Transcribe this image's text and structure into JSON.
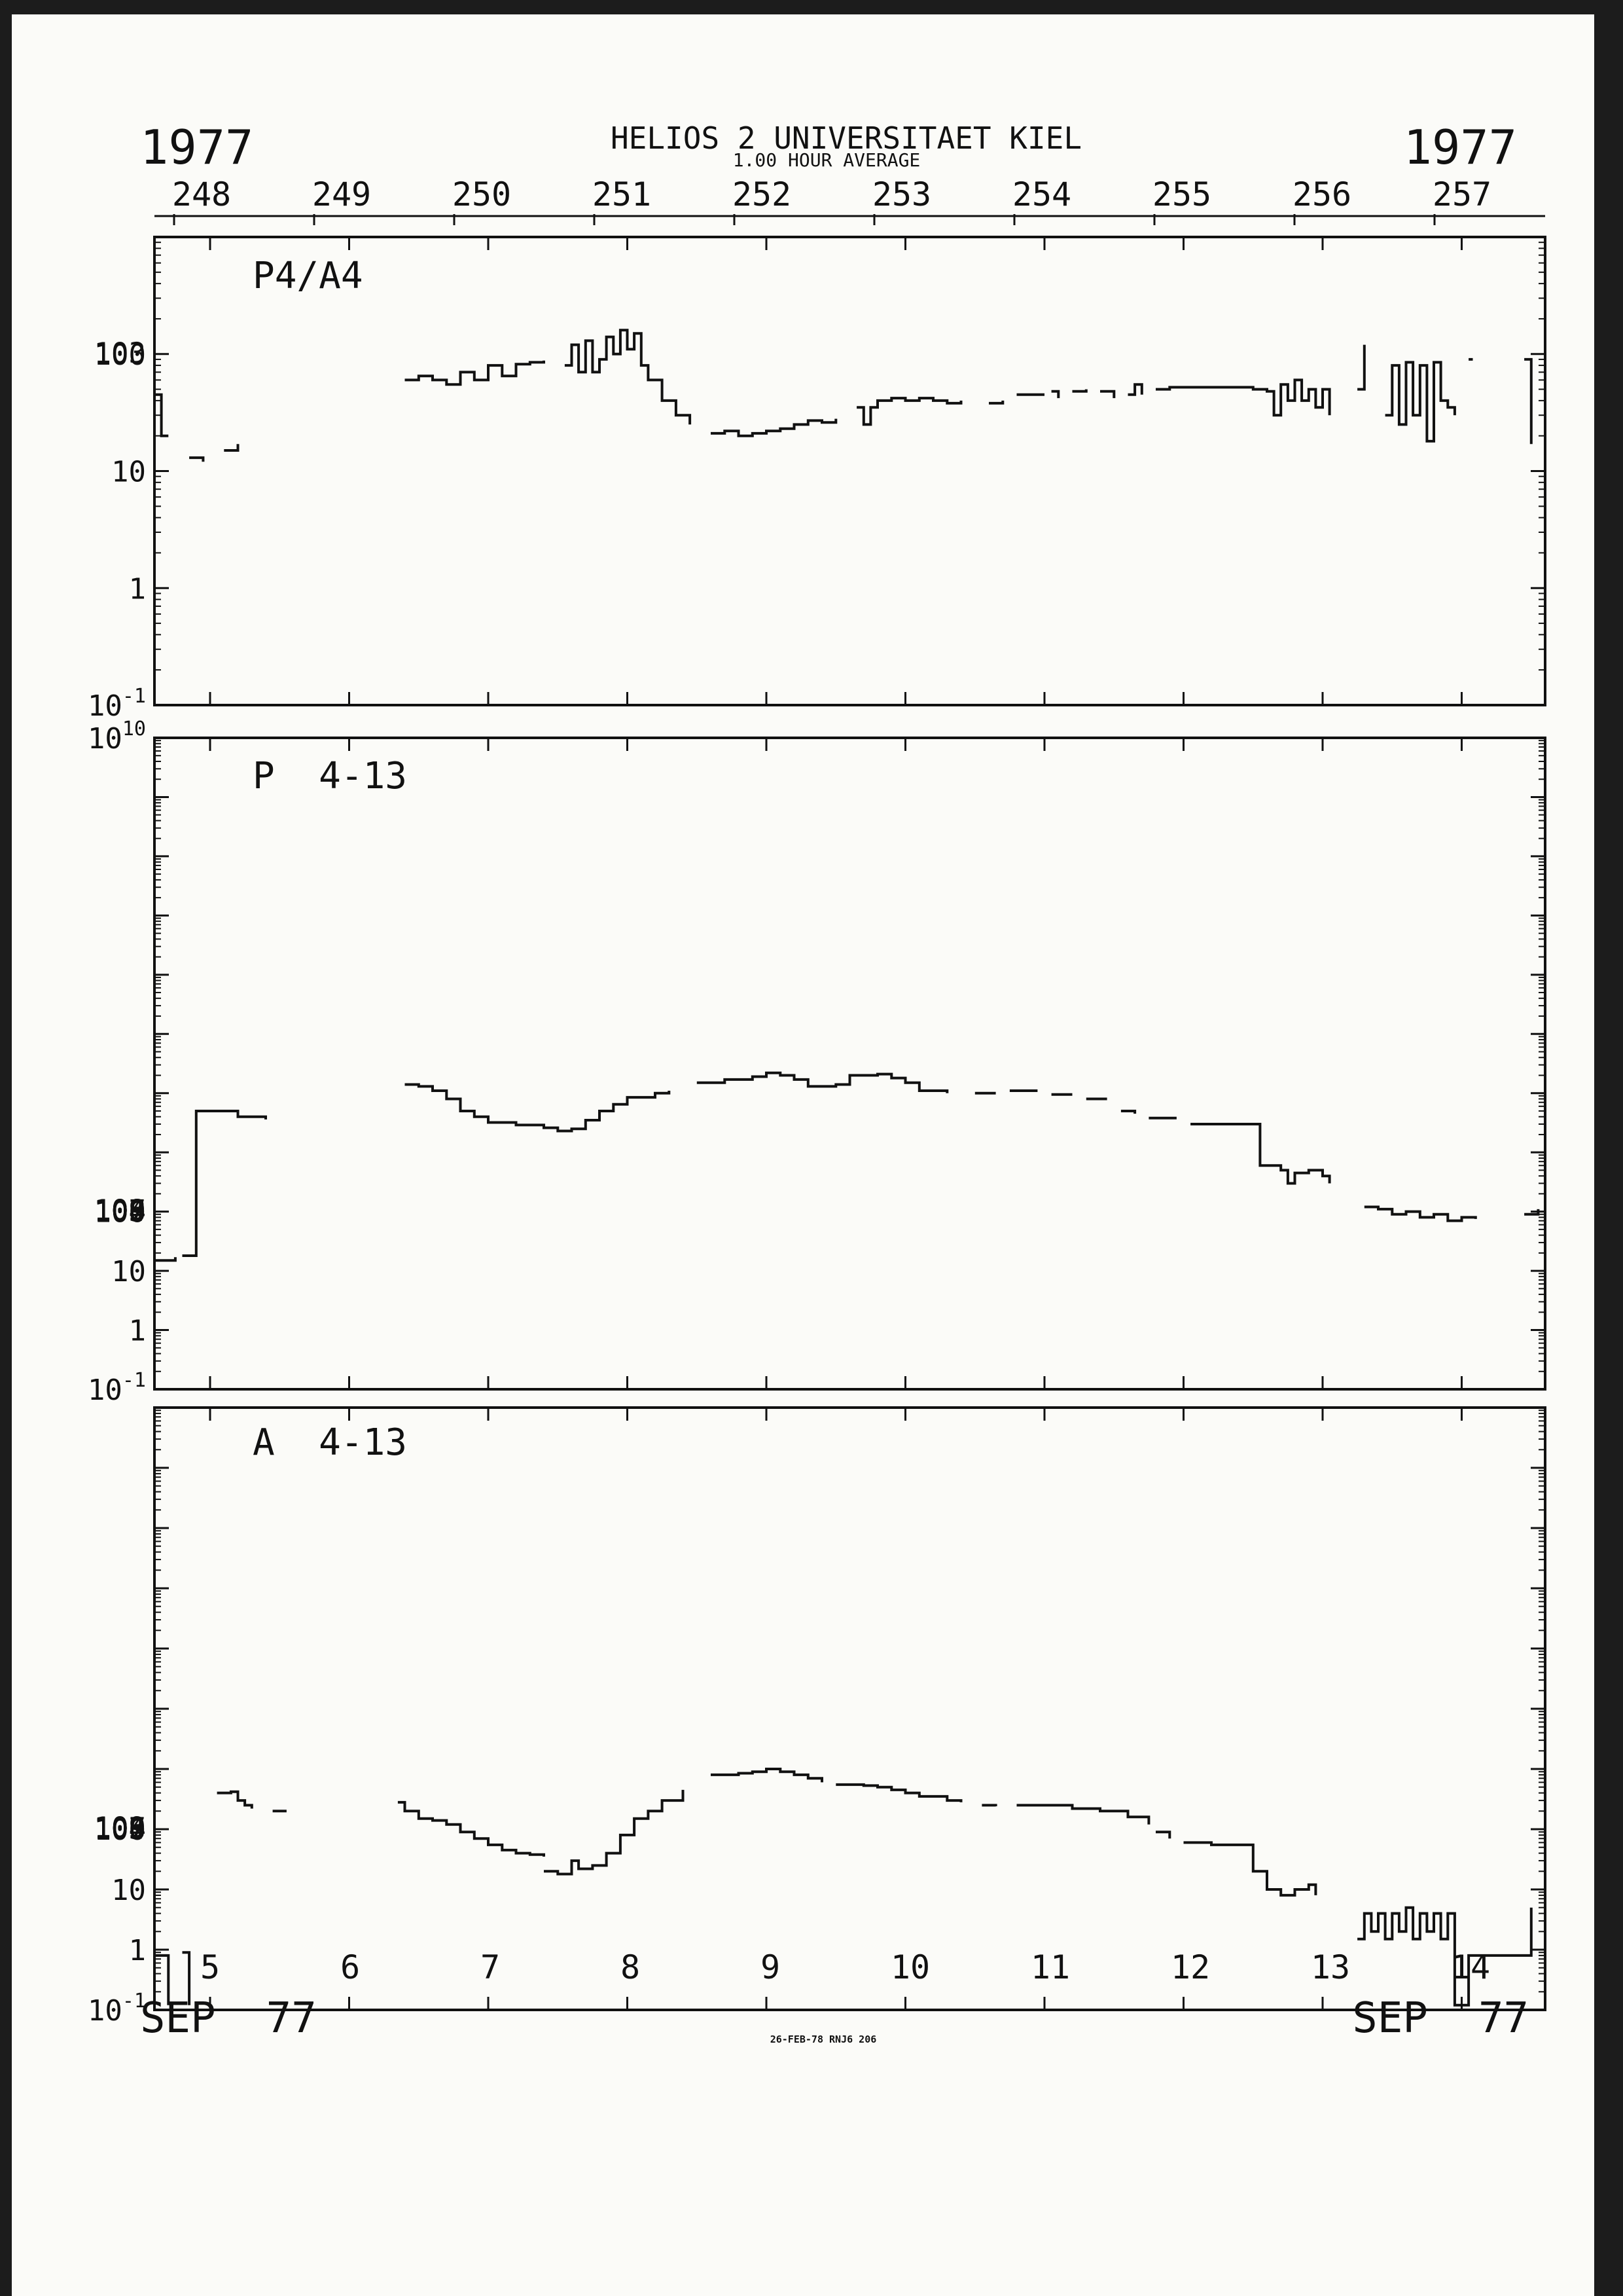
{
  "header": {
    "title": "HELIOS 2  UNIVERSITAET KIEL",
    "subtitle": "1.00 HOUR AVERAGE",
    "year_left": "1977",
    "year_right": "1977",
    "doy_labels": [
      "248",
      "249",
      "250",
      "251",
      "252",
      "253",
      "254",
      "255",
      "256",
      "257"
    ]
  },
  "footer": {
    "month_left": "SEP  77",
    "month_right": "SEP  77",
    "day_labels": [
      "5",
      "6",
      "7",
      "8",
      "9",
      "10",
      "11",
      "12",
      "13",
      "14"
    ],
    "stamp": "26-FEB-78 RNJ6 206"
  },
  "chart_data": [
    {
      "type": "line",
      "title": "P4/A4",
      "log_scale": true,
      "ylim": [
        0.1,
        1000
      ],
      "x_unit": "day of Sep 1977",
      "xlim": [
        4.6,
        14.6
      ],
      "y_tick_labels": [
        "10-1",
        "1",
        "10",
        "100",
        "103"
      ],
      "segments": [
        [
          [
            4.6,
            45
          ],
          [
            4.65,
            45
          ],
          [
            4.65,
            20
          ],
          [
            4.7,
            20
          ]
        ],
        [
          [
            4.85,
            13
          ],
          [
            4.95,
            12
          ]
        ],
        [
          [
            5.1,
            15
          ],
          [
            5.2,
            17
          ]
        ],
        [
          [
            6.4,
            60
          ],
          [
            6.5,
            65
          ],
          [
            6.6,
            60
          ],
          [
            6.7,
            55
          ],
          [
            6.8,
            70
          ],
          [
            6.9,
            60
          ],
          [
            7.0,
            80
          ],
          [
            7.1,
            65
          ],
          [
            7.2,
            82
          ],
          [
            7.3,
            85
          ],
          [
            7.4,
            88
          ]
        ],
        [
          [
            7.55,
            80
          ],
          [
            7.6,
            120
          ],
          [
            7.65,
            70
          ],
          [
            7.7,
            130
          ],
          [
            7.75,
            70
          ],
          [
            7.8,
            90
          ],
          [
            7.85,
            140
          ],
          [
            7.9,
            100
          ],
          [
            7.95,
            160
          ],
          [
            8.0,
            110
          ],
          [
            8.05,
            150
          ],
          [
            8.1,
            80
          ],
          [
            8.15,
            60
          ],
          [
            8.25,
            40
          ],
          [
            8.35,
            30
          ],
          [
            8.45,
            25
          ]
        ],
        [
          [
            8.6,
            21
          ],
          [
            8.7,
            22
          ],
          [
            8.8,
            20
          ],
          [
            8.9,
            21
          ],
          [
            9.0,
            22
          ],
          [
            9.1,
            23
          ],
          [
            9.2,
            25
          ],
          [
            9.3,
            27
          ],
          [
            9.4,
            26
          ],
          [
            9.5,
            28
          ]
        ],
        [
          [
            9.65,
            35
          ],
          [
            9.7,
            25
          ],
          [
            9.75,
            35
          ],
          [
            9.8,
            40
          ],
          [
            9.9,
            42
          ],
          [
            10.0,
            40
          ],
          [
            10.1,
            42
          ],
          [
            10.2,
            40
          ],
          [
            10.3,
            38
          ],
          [
            10.4,
            40
          ]
        ],
        [
          [
            10.6,
            38
          ],
          [
            10.7,
            40
          ]
        ],
        [
          [
            10.8,
            45
          ],
          [
            11.0,
            45
          ]
        ],
        [
          [
            11.05,
            48
          ],
          [
            11.1,
            42
          ]
        ],
        [
          [
            11.2,
            48
          ],
          [
            11.3,
            50
          ]
        ],
        [
          [
            11.4,
            48
          ],
          [
            11.5,
            42
          ]
        ],
        [
          [
            11.6,
            45
          ],
          [
            11.65,
            55
          ],
          [
            11.7,
            45
          ]
        ],
        [
          [
            11.8,
            50
          ],
          [
            11.9,
            52
          ],
          [
            12.4,
            52
          ],
          [
            12.5,
            50
          ],
          [
            12.6,
            48
          ],
          [
            12.65,
            30
          ],
          [
            12.7,
            55
          ],
          [
            12.75,
            40
          ],
          [
            12.8,
            60
          ],
          [
            12.85,
            40
          ],
          [
            12.9,
            50
          ],
          [
            12.95,
            35
          ],
          [
            13.0,
            50
          ],
          [
            13.05,
            30
          ]
        ],
        [
          [
            13.25,
            50
          ],
          [
            13.3,
            120
          ]
        ],
        [
          [
            13.45,
            30
          ],
          [
            13.5,
            80
          ],
          [
            13.55,
            25
          ],
          [
            13.6,
            85
          ],
          [
            13.65,
            30
          ],
          [
            13.7,
            80
          ],
          [
            13.75,
            18
          ],
          [
            13.8,
            85
          ],
          [
            13.85,
            40
          ],
          [
            13.9,
            35
          ],
          [
            13.95,
            30
          ]
        ],
        [
          [
            14.05,
            90
          ],
          [
            14.08,
            90
          ]
        ],
        [
          [
            14.45,
            90
          ],
          [
            14.5,
            17
          ]
        ]
      ]
    },
    {
      "type": "line",
      "title": "P  4-13",
      "log_scale": true,
      "ylim": [
        0.1,
        10000000000
      ],
      "x_unit": "day of Sep 1977",
      "xlim": [
        4.6,
        14.6
      ],
      "y_tick_labels": [
        "10-1",
        "1",
        "10",
        "100",
        "103",
        "104",
        "105",
        "106",
        "107",
        "108",
        "109",
        "1010"
      ],
      "segments": [
        [
          [
            4.6,
            15
          ],
          [
            4.75,
            17
          ]
        ],
        [
          [
            4.8,
            18
          ],
          [
            4.9,
            18
          ],
          [
            4.9,
            5000
          ],
          [
            5.1,
            5000
          ],
          [
            5.2,
            4000
          ],
          [
            5.4,
            3600
          ]
        ],
        [
          [
            6.4,
            14000
          ],
          [
            6.5,
            13000
          ],
          [
            6.6,
            11000
          ],
          [
            6.7,
            8000
          ],
          [
            6.8,
            5000
          ],
          [
            6.9,
            4000
          ],
          [
            7.0,
            3200
          ],
          [
            7.2,
            2900
          ],
          [
            7.4,
            2600
          ],
          [
            7.5,
            2300
          ],
          [
            7.6,
            2500
          ],
          [
            7.7,
            3500
          ],
          [
            7.8,
            5000
          ],
          [
            7.9,
            6500
          ],
          [
            8.0,
            8500
          ],
          [
            8.2,
            10000
          ],
          [
            8.3,
            11000
          ]
        ],
        [
          [
            8.5,
            15000
          ],
          [
            8.7,
            17000
          ],
          [
            8.9,
            19000
          ],
          [
            9.0,
            22000
          ],
          [
            9.1,
            20000
          ],
          [
            9.2,
            17000
          ],
          [
            9.3,
            13000
          ],
          [
            9.5,
            14000
          ],
          [
            9.6,
            20000
          ],
          [
            9.8,
            21000
          ],
          [
            9.9,
            18000
          ],
          [
            10.0,
            15000
          ],
          [
            10.1,
            11000
          ],
          [
            10.3,
            10000
          ]
        ],
        [
          [
            10.5,
            10000
          ],
          [
            10.65,
            10000
          ]
        ],
        [
          [
            10.75,
            11000
          ],
          [
            10.95,
            11000
          ]
        ],
        [
          [
            11.05,
            9500
          ],
          [
            11.2,
            9500
          ]
        ],
        [
          [
            11.3,
            8000
          ],
          [
            11.45,
            8000
          ]
        ],
        [
          [
            11.55,
            5000
          ],
          [
            11.65,
            4500
          ]
        ],
        [
          [
            11.75,
            3800
          ],
          [
            11.95,
            3800
          ]
        ],
        [
          [
            12.05,
            3000
          ],
          [
            12.55,
            3000
          ],
          [
            12.55,
            600
          ],
          [
            12.7,
            500
          ],
          [
            12.75,
            300
          ],
          [
            12.8,
            450
          ],
          [
            12.9,
            500
          ],
          [
            13.0,
            400
          ],
          [
            13.05,
            300
          ]
        ],
        [
          [
            13.3,
            120
          ],
          [
            13.4,
            110
          ],
          [
            13.5,
            90
          ],
          [
            13.6,
            100
          ],
          [
            13.7,
            80
          ],
          [
            13.8,
            90
          ],
          [
            13.9,
            70
          ],
          [
            14.0,
            80
          ],
          [
            14.1,
            75
          ]
        ],
        [
          [
            14.45,
            90
          ],
          [
            14.55,
            110
          ]
        ]
      ]
    },
    {
      "type": "line",
      "title": "A  4-13",
      "log_scale": true,
      "ylim": [
        0.1,
        1000000000
      ],
      "x_unit": "day of Sep 1977",
      "xlim": [
        4.6,
        14.6
      ],
      "y_tick_labels": [
        "10-1",
        "1",
        "10",
        "100",
        "103",
        "104",
        "105",
        "106",
        "107",
        "109"
      ],
      "segments": [
        [
          [
            4.6,
            0.8
          ],
          [
            4.7,
            0.8
          ],
          [
            4.7,
            0.12
          ]
        ],
        [
          [
            4.8,
            0.9
          ],
          [
            4.85,
            0.12
          ]
        ],
        [
          [
            5.05,
            400
          ],
          [
            5.15,
            420
          ],
          [
            5.2,
            300
          ],
          [
            5.25,
            250
          ],
          [
            5.3,
            220
          ]
        ],
        [
          [
            5.45,
            200
          ],
          [
            5.55,
            200
          ]
        ],
        [
          [
            6.35,
            280
          ],
          [
            6.4,
            200
          ],
          [
            6.5,
            150
          ],
          [
            6.6,
            140
          ],
          [
            6.7,
            120
          ],
          [
            6.8,
            90
          ],
          [
            6.9,
            70
          ],
          [
            7.0,
            55
          ],
          [
            7.1,
            45
          ],
          [
            7.2,
            40
          ],
          [
            7.3,
            38
          ],
          [
            7.4,
            35
          ]
        ],
        [
          [
            7.4,
            20
          ],
          [
            7.5,
            18
          ],
          [
            7.6,
            30
          ],
          [
            7.65,
            22
          ],
          [
            7.75,
            25
          ],
          [
            7.85,
            40
          ],
          [
            7.95,
            80
          ],
          [
            8.05,
            150
          ],
          [
            8.15,
            200
          ],
          [
            8.25,
            300
          ],
          [
            8.4,
            450
          ]
        ],
        [
          [
            8.6,
            800
          ],
          [
            8.8,
            850
          ],
          [
            8.9,
            900
          ],
          [
            9.0,
            1000
          ],
          [
            9.1,
            900
          ],
          [
            9.2,
            800
          ],
          [
            9.3,
            700
          ],
          [
            9.4,
            600
          ]
        ],
        [
          [
            9.5,
            550
          ],
          [
            9.7,
            530
          ],
          [
            9.8,
            500
          ],
          [
            9.9,
            450
          ],
          [
            10.0,
            400
          ],
          [
            10.1,
            350
          ],
          [
            10.3,
            300
          ],
          [
            10.4,
            280
          ]
        ],
        [
          [
            10.55,
            250
          ],
          [
            10.65,
            240
          ]
        ],
        [
          [
            10.8,
            250
          ],
          [
            11.0,
            250
          ],
          [
            11.2,
            220
          ],
          [
            11.4,
            200
          ],
          [
            11.6,
            160
          ],
          [
            11.75,
            120
          ]
        ],
        [
          [
            11.8,
            90
          ],
          [
            11.9,
            70
          ]
        ],
        [
          [
            12.0,
            60
          ],
          [
            12.2,
            55
          ],
          [
            12.5,
            55
          ],
          [
            12.5,
            20
          ],
          [
            12.6,
            10
          ],
          [
            12.7,
            8
          ],
          [
            12.8,
            10
          ],
          [
            12.9,
            12
          ],
          [
            12.95,
            8
          ]
        ],
        [
          [
            13.25,
            1.5
          ],
          [
            13.3,
            4
          ],
          [
            13.35,
            2
          ],
          [
            13.4,
            4
          ],
          [
            13.45,
            1.5
          ],
          [
            13.5,
            4
          ],
          [
            13.55,
            2
          ],
          [
            13.6,
            5
          ],
          [
            13.65,
            1.5
          ],
          [
            13.7,
            4
          ],
          [
            13.75,
            2
          ],
          [
            13.8,
            4
          ],
          [
            13.85,
            1.5
          ],
          [
            13.9,
            4
          ],
          [
            13.95,
            1
          ]
        ],
        [
          [
            13.95,
            1
          ],
          [
            13.95,
            0.12
          ],
          [
            14.05,
            0.12
          ],
          [
            14.05,
            0.8
          ],
          [
            14.45,
            0.8
          ],
          [
            14.5,
            5
          ]
        ]
      ]
    }
  ]
}
